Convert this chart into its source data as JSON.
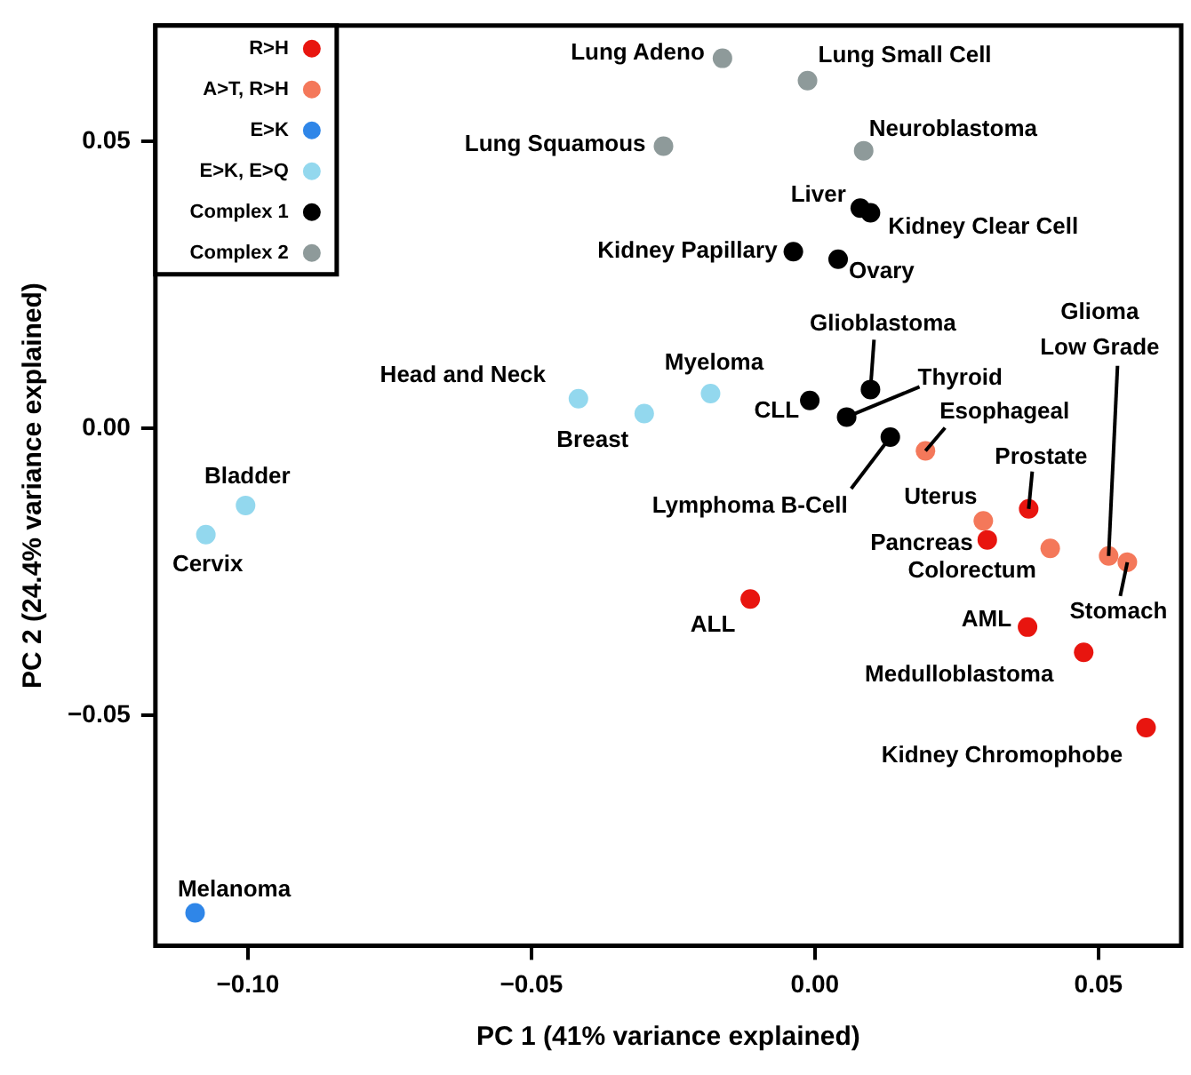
{
  "chart_data": {
    "type": "scatter",
    "xlabel": "PC 1 (41% variance explained)",
    "ylabel": "PC 2 (24.4% variance explained)",
    "xlim": [
      -0.1163,
      0.0646
    ],
    "ylim": [
      -0.0901,
      0.0702
    ],
    "xticks": [
      {
        "value": -0.1,
        "label": "−0.10"
      },
      {
        "value": -0.05,
        "label": "−0.05"
      },
      {
        "value": 0,
        "label": "0.00"
      },
      {
        "value": 0.05,
        "label": "0.05"
      }
    ],
    "yticks": [
      {
        "value": -0.05,
        "label": "−0.05"
      },
      {
        "value": 0,
        "label": "0.00"
      },
      {
        "value": 0.05,
        "label": "0.05"
      }
    ],
    "grid": false,
    "legend": "top left",
    "marker": "circle",
    "series": [
      {
        "name": "R>H",
        "color": "#e8150f",
        "x": [
          0.0304,
          -0.0114,
          0.0375,
          0.0474,
          0.0584,
          0.0377
        ],
        "values": [
          -0.0194,
          -0.0297,
          -0.0346,
          -0.039,
          -0.0521,
          -0.014
        ]
      },
      {
        "name": "A>T, R>H",
        "color": "#f4785a",
        "x": [
          0.0195,
          0.0297,
          0.0415,
          0.0518,
          0.0551
        ],
        "values": [
          -0.0039,
          -0.0161,
          -0.0209,
          -0.0222,
          -0.0233
        ]
      },
      {
        "name": "E>K",
        "color": "#2f86e8",
        "x": [
          -0.1093
        ],
        "values": [
          -0.0844
        ]
      },
      {
        "name": "E>K, E>Q",
        "color": "#93d8ee",
        "x": [
          -0.0417,
          -0.0301,
          -0.0184,
          -0.1004,
          -0.1074
        ],
        "values": [
          0.0052,
          0.0026,
          0.0061,
          -0.0134,
          -0.0185
        ]
      },
      {
        "name": "Complex 1",
        "color": "#000000",
        "x": [
          0.008,
          0.0098,
          -0.0038,
          0.0041,
          0.0098,
          -0.0009,
          0.0056,
          0.0133
        ],
        "values": [
          0.0384,
          0.0376,
          0.0308,
          0.0295,
          0.0068,
          0.0049,
          0.002,
          -0.0015
        ]
      },
      {
        "name": "Complex 2",
        "color": "#8e9a9a",
        "x": [
          -0.0163,
          -0.0013,
          -0.0267,
          0.0086
        ],
        "values": [
          0.0645,
          0.0606,
          0.0492,
          0.0484
        ]
      }
    ],
    "annotations": [
      {
        "text": "Pancreas",
        "x": 0.0304,
        "y": -0.0194
      },
      {
        "text": "ALL",
        "x": -0.0114,
        "y": -0.0297
      },
      {
        "text": "AML",
        "x": 0.0375,
        "y": -0.0346
      },
      {
        "text": "Medulloblastoma",
        "x": 0.0474,
        "y": -0.039
      },
      {
        "text": "Kidney Chromophobe",
        "x": 0.0584,
        "y": -0.0521
      },
      {
        "text": "Prostate",
        "x": 0.0377,
        "y": -0.014
      },
      {
        "text": "Esophageal",
        "x": 0.0195,
        "y": -0.0039
      },
      {
        "text": "Uterus",
        "x": 0.0297,
        "y": -0.0161
      },
      {
        "text": "Colorectum",
        "x": 0.0415,
        "y": -0.0209
      },
      {
        "text": "Glioma Low Grade",
        "x": 0.0518,
        "y": -0.0222
      },
      {
        "text": "Stomach",
        "x": 0.0551,
        "y": -0.0233
      },
      {
        "text": "Melanoma",
        "x": -0.1093,
        "y": -0.0844
      },
      {
        "text": "Head and Neck",
        "x": -0.0417,
        "y": 0.0052
      },
      {
        "text": "Breast",
        "x": -0.0301,
        "y": 0.0026
      },
      {
        "text": "Myeloma",
        "x": -0.0184,
        "y": 0.0061
      },
      {
        "text": "Bladder",
        "x": -0.1004,
        "y": -0.0134
      },
      {
        "text": "Cervix",
        "x": -0.1074,
        "y": -0.0185
      },
      {
        "text": "Liver",
        "x": 0.008,
        "y": 0.0384
      },
      {
        "text": "Kidney Clear Cell",
        "x": 0.0098,
        "y": 0.0376
      },
      {
        "text": "Kidney Papillary",
        "x": -0.0038,
        "y": 0.0308
      },
      {
        "text": "Ovary",
        "x": 0.0041,
        "y": 0.0295
      },
      {
        "text": "Glioblastoma",
        "x": 0.0098,
        "y": 0.0068
      },
      {
        "text": "CLL",
        "x": -0.0009,
        "y": 0.0049
      },
      {
        "text": "Thyroid",
        "x": 0.0056,
        "y": 0.002
      },
      {
        "text": "Lymphoma B-Cell",
        "x": 0.0133,
        "y": -0.0015
      },
      {
        "text": "Lung Adeno",
        "x": -0.0163,
        "y": 0.0645
      },
      {
        "text": "Lung Small Cell",
        "x": -0.0013,
        "y": 0.0606
      },
      {
        "text": "Lung Squamous",
        "x": -0.0267,
        "y": 0.0492
      },
      {
        "text": "Neuroblastoma",
        "x": 0.0086,
        "y": 0.0484
      }
    ]
  }
}
